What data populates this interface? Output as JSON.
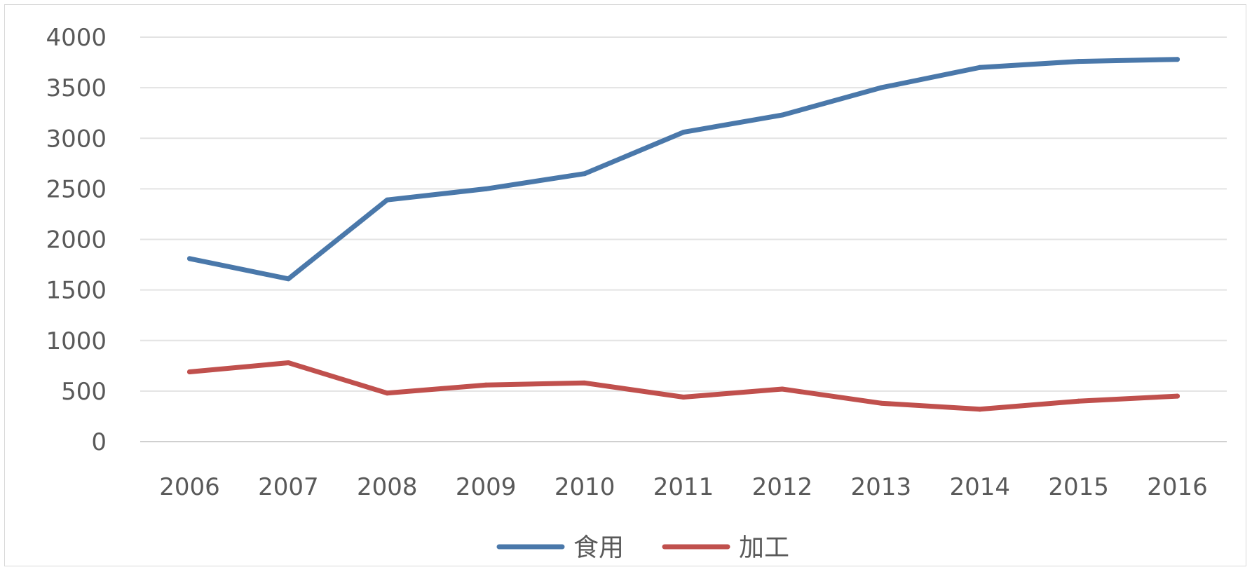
{
  "chart_data": {
    "type": "line",
    "categories": [
      "2006",
      "2007",
      "2008",
      "2009",
      "2010",
      "2011",
      "2012",
      "2013",
      "2014",
      "2015",
      "2016"
    ],
    "series": [
      {
        "name": "食用",
        "color": "#4a78aa",
        "values": [
          1810,
          1610,
          2390,
          2500,
          2650,
          3060,
          3230,
          3500,
          3700,
          3760,
          3780
        ]
      },
      {
        "name": "加工",
        "color": "#c0504d",
        "values": [
          690,
          780,
          480,
          560,
          580,
          440,
          520,
          380,
          320,
          400,
          450
        ]
      }
    ],
    "ylim": [
      0,
      4000
    ],
    "yticks": [
      "0",
      "500",
      "1000",
      "1500",
      "2000",
      "2500",
      "3000",
      "3500",
      "4000"
    ],
    "grid": true,
    "legend_position": "bottom",
    "title": "",
    "xlabel": "",
    "ylabel": ""
  }
}
